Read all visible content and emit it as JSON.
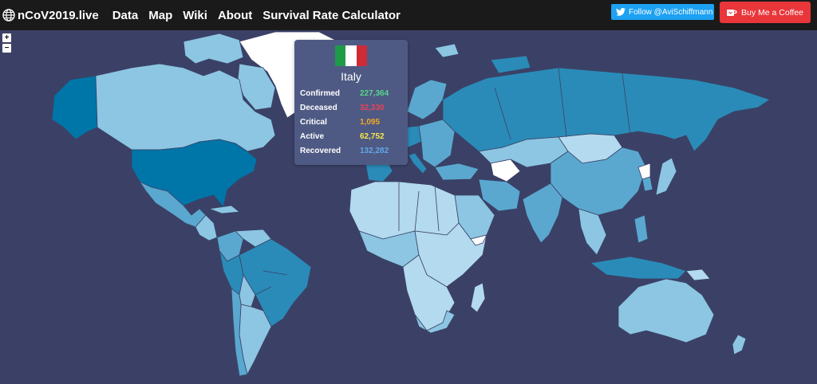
{
  "nav": {
    "brand": "nCoV2019.live",
    "links": [
      "Data",
      "Map",
      "Wiki",
      "About",
      "Survival Rate Calculator"
    ],
    "follow_label": "Follow @AviSchiffmann",
    "coffee_label": "Buy Me a Coffee"
  },
  "zoom": {
    "in_label": "+",
    "out_label": "−"
  },
  "tooltip": {
    "country": "Italy",
    "flag_colors": [
      "#1f9a49",
      "#ffffff",
      "#cf2b37"
    ],
    "stats": [
      {
        "label": "Confirmed",
        "value": "227,364",
        "color": "#58d68d"
      },
      {
        "label": "Deceased",
        "value": "32,330",
        "color": "#e8425a"
      },
      {
        "label": "Critical",
        "value": "1,095",
        "color": "#f5a623"
      },
      {
        "label": "Active",
        "value": "62,752",
        "color": "#f7e84a"
      },
      {
        "label": "Recovered",
        "value": "132,282",
        "color": "#5fa8e8"
      }
    ]
  },
  "map_colors": {
    "ocean": "#3b4166",
    "darkest": "#0075a8",
    "dark": "#2a8bb8",
    "mid": "#5aa8d0",
    "light": "#8cc6e3",
    "lighter": "#b3daee",
    "none": "#ffffff"
  }
}
